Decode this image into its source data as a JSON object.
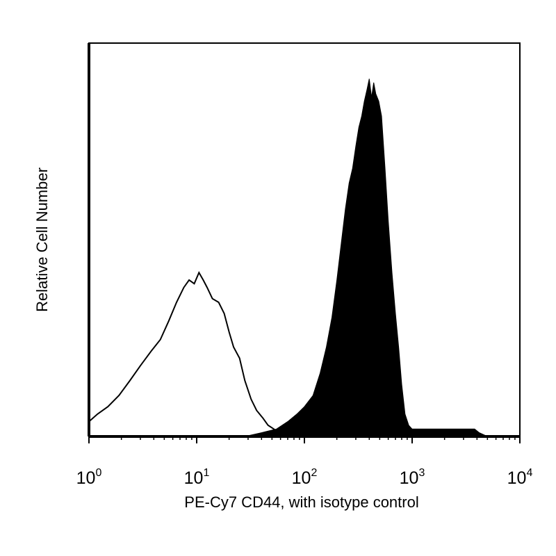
{
  "chart_data": {
    "type": "area",
    "title": "",
    "xlabel": "PE-Cy7 CD44, with isotype control",
    "ylabel": "Relative Cell Number",
    "xscale": "log",
    "xlim": [
      1,
      10000
    ],
    "ylim": [
      0,
      100
    ],
    "grid": false,
    "legend": "none",
    "x_ticks": [
      {
        "base": "10",
        "exp": "0"
      },
      {
        "base": "10",
        "exp": "1"
      },
      {
        "base": "10",
        "exp": "2"
      },
      {
        "base": "10",
        "exp": "3"
      },
      {
        "base": "10",
        "exp": "4"
      }
    ],
    "series": [
      {
        "style": "outline",
        "color": "#000000",
        "points": [
          [
            1.0,
            4
          ],
          [
            1.2,
            6
          ],
          [
            1.5,
            8
          ],
          [
            1.9,
            11
          ],
          [
            2.4,
            15
          ],
          [
            3.0,
            19
          ],
          [
            3.8,
            23
          ],
          [
            4.6,
            26
          ],
          [
            5.5,
            31
          ],
          [
            6.5,
            36
          ],
          [
            7.6,
            40
          ],
          [
            8.5,
            42
          ],
          [
            9.5,
            41
          ],
          [
            10.5,
            44
          ],
          [
            11.5,
            42
          ],
          [
            12.5,
            40
          ],
          [
            14,
            37
          ],
          [
            16,
            36
          ],
          [
            18,
            33
          ],
          [
            20,
            28
          ],
          [
            22,
            24
          ],
          [
            25,
            21
          ],
          [
            28,
            15
          ],
          [
            32,
            10
          ],
          [
            36,
            7
          ],
          [
            41,
            5
          ],
          [
            46,
            3
          ],
          [
            52,
            2
          ],
          [
            58,
            1
          ],
          [
            62,
            0
          ]
        ]
      },
      {
        "style": "filled",
        "color": "#000000",
        "points": [
          [
            28,
            0
          ],
          [
            40,
            1
          ],
          [
            55,
            2
          ],
          [
            70,
            4
          ],
          [
            85,
            6
          ],
          [
            100,
            8
          ],
          [
            120,
            11
          ],
          [
            140,
            17
          ],
          [
            160,
            24
          ],
          [
            180,
            32
          ],
          [
            200,
            42
          ],
          [
            220,
            52
          ],
          [
            240,
            61
          ],
          [
            260,
            68
          ],
          [
            280,
            72
          ],
          [
            300,
            78
          ],
          [
            320,
            83
          ],
          [
            340,
            86
          ],
          [
            360,
            90
          ],
          [
            380,
            93
          ],
          [
            400,
            96
          ],
          [
            420,
            91
          ],
          [
            440,
            95
          ],
          [
            460,
            92
          ],
          [
            490,
            90
          ],
          [
            520,
            86
          ],
          [
            560,
            72
          ],
          [
            600,
            58
          ],
          [
            650,
            44
          ],
          [
            700,
            33
          ],
          [
            750,
            24
          ],
          [
            800,
            14
          ],
          [
            860,
            6
          ],
          [
            930,
            3
          ],
          [
            1000,
            2
          ],
          [
            1200,
            2
          ],
          [
            1500,
            2
          ],
          [
            2000,
            2
          ],
          [
            2600,
            2
          ],
          [
            3200,
            2
          ],
          [
            3800,
            2
          ],
          [
            4200,
            1
          ],
          [
            5000,
            0
          ]
        ]
      }
    ]
  }
}
